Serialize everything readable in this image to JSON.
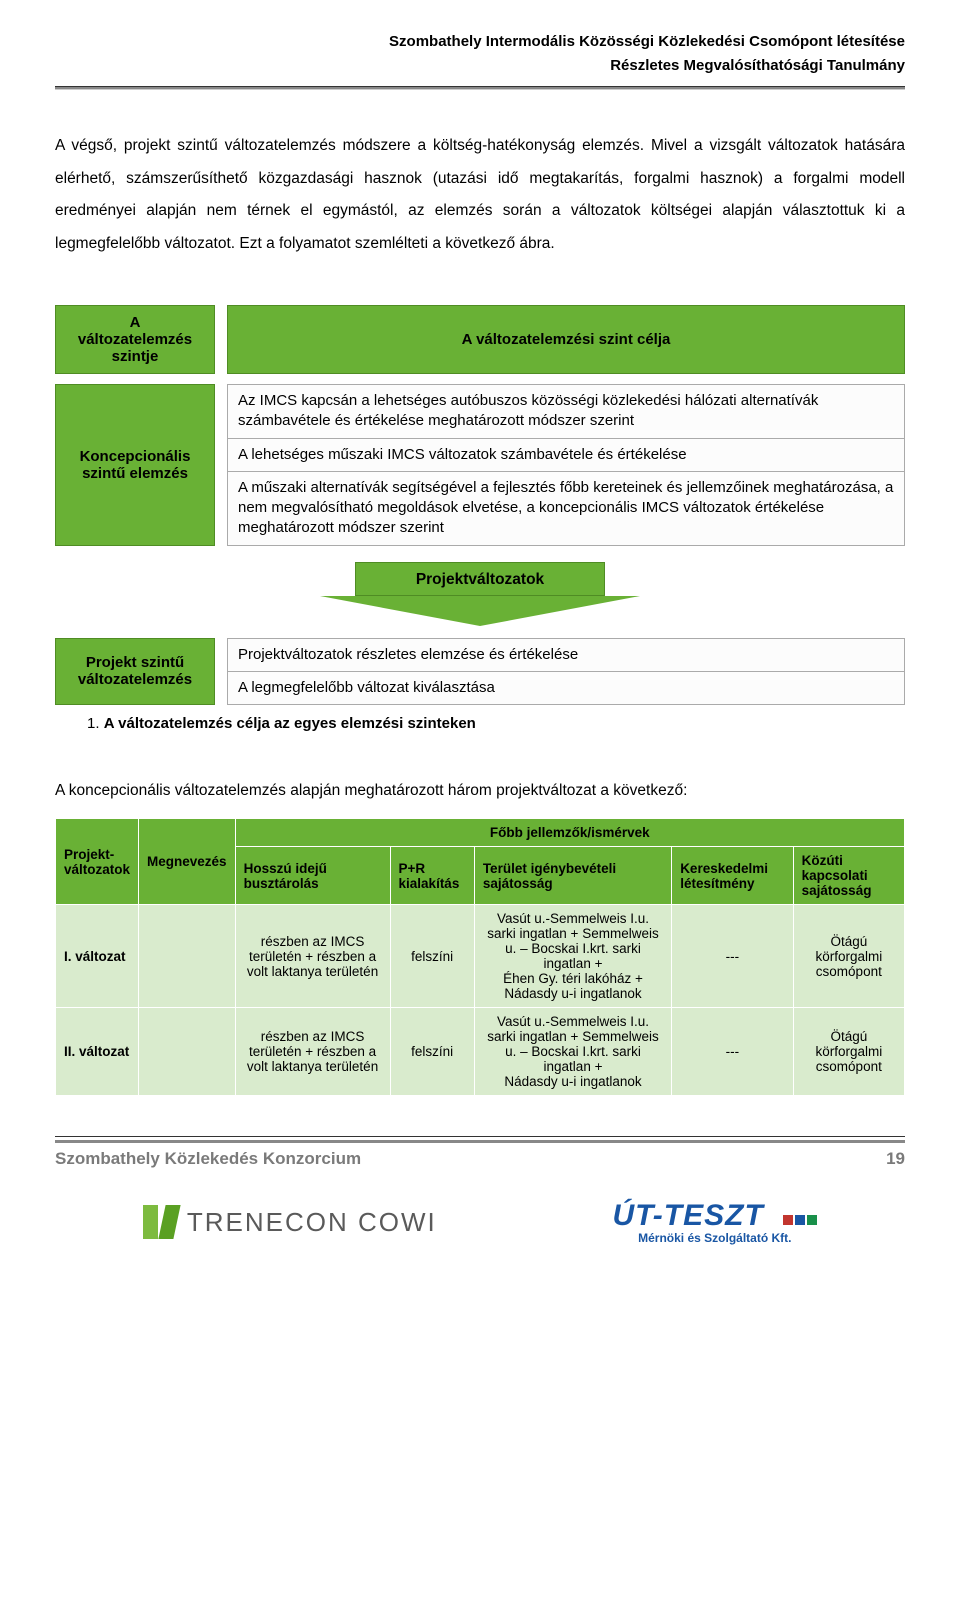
{
  "colors": {
    "green": "#69b135",
    "green_border": "#4f8c24",
    "row_bg": "#d9ebcd",
    "gray_text": "#7a7a7a",
    "blue": "#1956a4",
    "red": "#c2352e"
  },
  "header": {
    "line1": "Szombathely Intermodális Közösségi Közlekedési Csomópont létesítése",
    "line2": "Részletes Megvalósíthatósági Tanulmány"
  },
  "body_paragraph": "A végső, projekt szintű változatelemzés módszere a költség-hatékonyság elemzés. Mivel a vizsgált változatok hatására elérhető, számszerűsíthető közgazdasági hasznok (utazási idő megtakarítás, forgalmi hasznok) a forgalmi modell eredményei alapján nem térnek el egymástól, az elemzés során a változatok költségei alapján választottuk ki a legmegfelelőbb változatot. Ezt a folyamatot szemlélteti a következő ábra.",
  "diagram": {
    "row1": {
      "left": "A\nváltozatelemzés\nszintje",
      "right": "A változatelemzési szint célja"
    },
    "row2": {
      "left": "Koncepcionális szintű elemzés",
      "items": [
        "Az IMCS kapcsán a lehetséges autóbuszos közösségi közlekedési hálózati alternatívák számbavétele és értékelése meghatározott módszer szerint",
        "A lehetséges műszaki IMCS változatok számbavétele és értékelése",
        "A műszaki alternatívák segítségével a fejlesztés főbb kereteinek és jellemzőinek meghatározása, a nem megvalósítható megoldások elvetése, a koncepcionális IMCS változatok értékelése meghatározott módszer szerint"
      ]
    },
    "arrow_label": "Projektváltozatok",
    "row3": {
      "left": "Projekt szintű változatelemzés",
      "items": [
        "Projektváltozatok részletes elemzése és értékelése",
        "A legmegfelelőbb változat kiválasztása"
      ]
    }
  },
  "caption": {
    "num": "1.",
    "text": "A változatelemzés célja az egyes elemzési szinteken"
  },
  "intro_line": "A koncepcionális változatelemzés alapján meghatározott három projektváltozat a következő:",
  "table": {
    "head": {
      "c1": "Projekt-\nváltozatok",
      "c2": "Megnevezés",
      "group": "Főbb jellemzők/ismérvek",
      "sub": [
        "Hosszú idejű busztárolás",
        "P+R kialakítás",
        "Terület igénybevételi sajátosság",
        "Kereskedelmi létesítmény",
        "Közúti kapcsolati sajátosság"
      ]
    },
    "rows": [
      {
        "c1": "I. változat",
        "c2": "",
        "v": [
          "részben az IMCS területén + részben a volt laktanya területén",
          "felszíni",
          "Vasút u.-Semmelweis I.u. sarki ingatlan + Semmelweis u. – Bocskai I.krt. sarki ingatlan +\nÉhen Gy. téri lakóház + Nádasdy u-i ingatlanok",
          "---",
          "Ötágú körforgalmi csomópont"
        ]
      },
      {
        "c1": "II. változat",
        "c2": "",
        "v": [
          "részben az IMCS területén + részben a volt laktanya területén",
          "felszíni",
          "Vasút u.-Semmelweis I.u. sarki ingatlan + Semmelweis u. – Bocskai I.krt. sarki ingatlan +\nNádasdy u-i ingatlanok",
          "---",
          "Ötágú körforgalmi csomópont"
        ]
      }
    ]
  },
  "footer": {
    "left": "Szombathely Közlekedés Konzorcium",
    "page": "19"
  },
  "logos": {
    "trenecon": "TRENECON COWI",
    "utteszt_main": "ÚT-TESZT",
    "utteszt_sub": "Mérnöki és Szolgáltató Kft."
  }
}
